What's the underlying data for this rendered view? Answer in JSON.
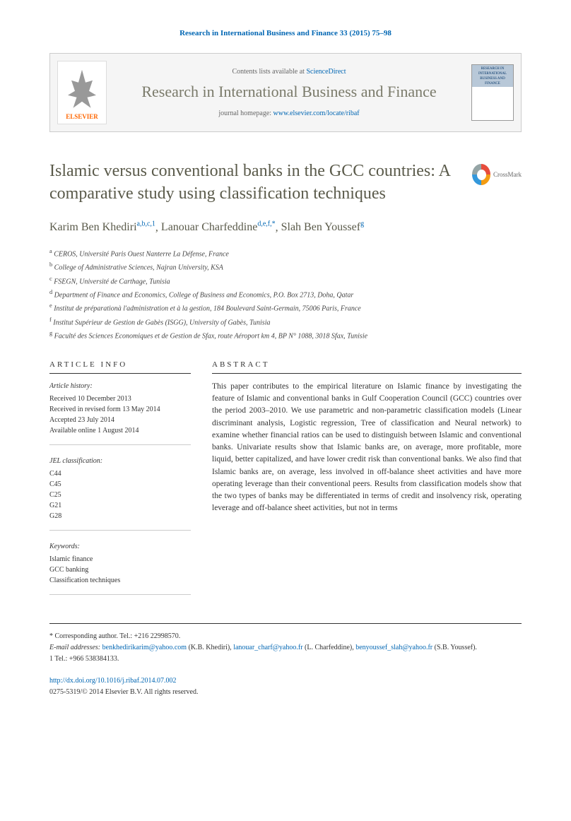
{
  "citation": "Research in International Business and Finance 33 (2015) 75–98",
  "banner": {
    "contents_prefix": "Contents lists available at ",
    "contents_link": "ScienceDirect",
    "journal_name": "Research in International Business and Finance",
    "homepage_prefix": "journal homepage: ",
    "homepage_url": "www.elsevier.com/locate/ribaf",
    "publisher": "ELSEVIER",
    "cover_text": "RESEARCH IN INTERNATIONAL BUSINESS AND FINANCE"
  },
  "title": "Islamic versus conventional banks in the GCC countries: A comparative study using classification techniques",
  "crossmark": "CrossMark",
  "authors": [
    {
      "name": "Karim Ben Khediri",
      "refs": "a,b,c,1"
    },
    {
      "name": "Lanouar Charfeddine",
      "refs": "d,e,f,*"
    },
    {
      "name": "Slah Ben Youssef",
      "refs": "g"
    }
  ],
  "affiliations": [
    {
      "ref": "a",
      "text": "CEROS, Université Paris Ouest Nanterre La Défense, France"
    },
    {
      "ref": "b",
      "text": "College of Administrative Sciences, Najran University, KSA"
    },
    {
      "ref": "c",
      "text": "FSEGN, Université de Carthage, Tunisia"
    },
    {
      "ref": "d",
      "text": "Department of Finance and Economics, College of Business and Economics, P.O. Box 2713, Doha, Qatar"
    },
    {
      "ref": "e",
      "text": "Institut de préparationà l'administration et à la gestion, 184 Boulevard Saint-Germain, 75006 Paris, France"
    },
    {
      "ref": "f",
      "text": "Institut Supérieur de Gestion de Gabès (ISGG), University of Gabès, Tunisia"
    },
    {
      "ref": "g",
      "text": "Faculté des Sciences Economiques et de Gestion de Sfax, route Aéroport km 4, BP N° 1088, 3018 Sfax, Tunisie"
    }
  ],
  "article_info": {
    "header": "ARTICLE INFO",
    "history_title": "Article history:",
    "history": [
      "Received 10 December 2013",
      "Received in revised form 13 May 2014",
      "Accepted 23 July 2014",
      "Available online 1 August 2014"
    ],
    "jel_title": "JEL classification:",
    "jel": [
      "C44",
      "C45",
      "C25",
      "G21",
      "G28"
    ],
    "keywords_title": "Keywords:",
    "keywords": [
      "Islamic finance",
      "GCC banking",
      "Classification techniques"
    ]
  },
  "abstract": {
    "header": "ABSTRACT",
    "text": "This paper contributes to the empirical literature on Islamic finance by investigating the feature of Islamic and conventional banks in Gulf Cooperation Council (GCC) countries over the period 2003–2010. We use parametric and non-parametric classification models (Linear discriminant analysis, Logistic regression, Tree of classification and Neural network) to examine whether financial ratios can be used to distinguish between Islamic and conventional banks. Univariate results show that Islamic banks are, on average, more profitable, more liquid, better capitalized, and have lower credit risk than conventional banks. We also find that Islamic banks are, on average, less involved in off-balance sheet activities and have more operating leverage than their conventional peers. Results from classification models show that the two types of banks may be differentiated in terms of credit and insolvency risk, operating leverage and off-balance sheet activities, but not in terms"
  },
  "footer": {
    "corresponding": "* Corresponding author. Tel.: +216 22998570.",
    "email_label": "E-mail addresses: ",
    "emails": [
      {
        "addr": "benkhedirikarim@yahoo.com",
        "who": "(K.B. Khediri)"
      },
      {
        "addr": "lanouar_charf@yahoo.fr",
        "who": "(L. Charfeddine)"
      },
      {
        "addr": "benyoussef_slah@yahoo.fr",
        "who": "(S.B. Youssef)"
      }
    ],
    "tel_note": "1   Tel.: +966 538384133.",
    "doi": "http://dx.doi.org/10.1016/j.ribaf.2014.07.002",
    "copyright": "0275-5319/© 2014 Elsevier B.V. All rights reserved."
  }
}
